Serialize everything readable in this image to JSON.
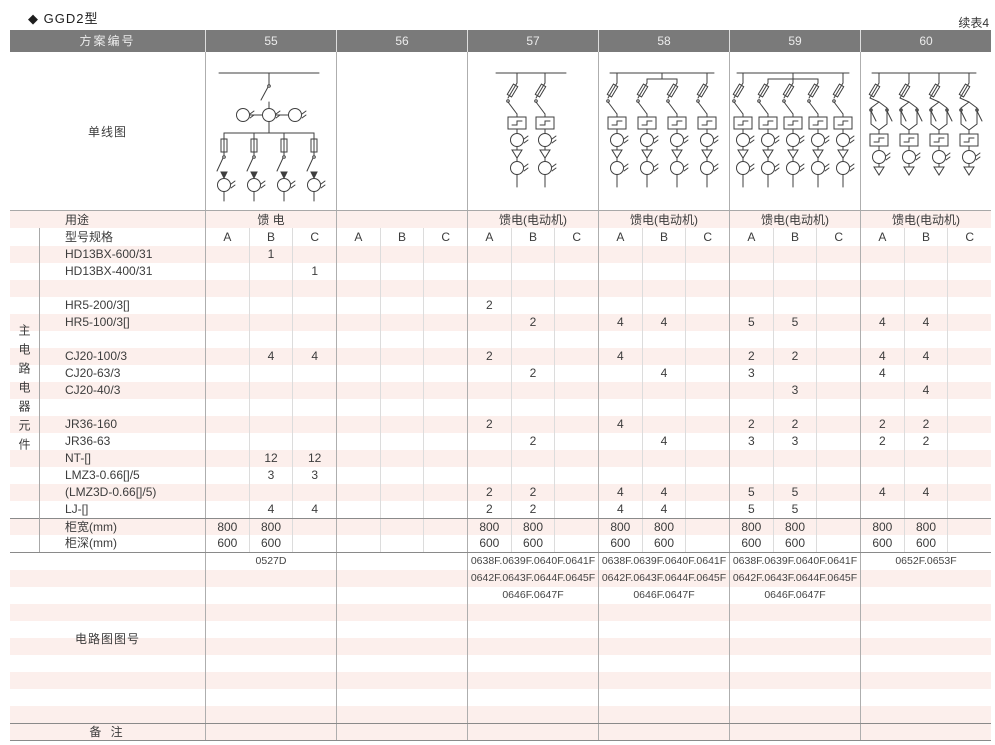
{
  "page": {
    "title": "◆ GGD2型",
    "continued_note": "续表4"
  },
  "colors": {
    "header_bg": "#7a7a7a",
    "stripe_pink": "#fcefec",
    "line_dark": "#8a8a8a",
    "line_mid": "#aeaeae",
    "diagram_stroke": "#3f3f3f"
  },
  "table": {
    "scheme_label": "方案编号",
    "schemes": [
      "55",
      "56",
      "57",
      "58",
      "59",
      "60"
    ],
    "diagram_label": "单线图",
    "diagrams": [
      {
        "scheme": "55",
        "kind": "feeder-fuse-switch",
        "branches": 4
      },
      {
        "scheme": "56",
        "kind": "none",
        "branches": 0
      },
      {
        "scheme": "57",
        "kind": "motor-feeder",
        "branches": 2
      },
      {
        "scheme": "58",
        "kind": "motor-feeder-tee",
        "branches": 4
      },
      {
        "scheme": "59",
        "kind": "motor-feeder-tee",
        "branches": 5
      },
      {
        "scheme": "60",
        "kind": "motor-feeder-reversing",
        "branches": 4
      }
    ],
    "usage_label": "用途",
    "usage_values": [
      "馈 电",
      "",
      "馈电(电动机)",
      "馈电(电动机)",
      "馈电(电动机)",
      "馈电(电动机)"
    ],
    "spec_label": "型号规格",
    "sub_columns": [
      "A",
      "B",
      "C"
    ],
    "side_label": "主电路电器元件",
    "component_rows": [
      {
        "label": "HD13BX-600/31",
        "cells": [
          [
            "",
            "1",
            ""
          ],
          [
            "",
            "",
            ""
          ],
          [
            "",
            "",
            ""
          ],
          [
            "",
            "",
            ""
          ],
          [
            "",
            "",
            ""
          ],
          [
            "",
            "",
            ""
          ]
        ]
      },
      {
        "label": "HD13BX-400/31",
        "cells": [
          [
            "",
            "",
            "1"
          ],
          [
            "",
            "",
            ""
          ],
          [
            "",
            "",
            ""
          ],
          [
            "",
            "",
            ""
          ],
          [
            "",
            "",
            ""
          ],
          [
            "",
            "",
            ""
          ]
        ]
      },
      {
        "label": "",
        "cells": [
          [
            "",
            "",
            ""
          ],
          [
            "",
            "",
            ""
          ],
          [
            "",
            "",
            ""
          ],
          [
            "",
            "",
            ""
          ],
          [
            "",
            "",
            ""
          ],
          [
            "",
            "",
            ""
          ]
        ]
      },
      {
        "label": "HR5-200/3[]",
        "cells": [
          [
            "",
            "",
            ""
          ],
          [
            "",
            "",
            ""
          ],
          [
            "2",
            "",
            ""
          ],
          [
            "",
            "",
            ""
          ],
          [
            "",
            "",
            ""
          ],
          [
            "",
            "",
            ""
          ]
        ]
      },
      {
        "label": "HR5-100/3[]",
        "cells": [
          [
            "",
            "",
            ""
          ],
          [
            "",
            "",
            ""
          ],
          [
            "",
            "2",
            ""
          ],
          [
            "4",
            "4",
            ""
          ],
          [
            "5",
            "5",
            ""
          ],
          [
            "4",
            "4",
            ""
          ]
        ]
      },
      {
        "label": "",
        "cells": [
          [
            "",
            "",
            ""
          ],
          [
            "",
            "",
            ""
          ],
          [
            "",
            "",
            ""
          ],
          [
            "",
            "",
            ""
          ],
          [
            "",
            "",
            ""
          ],
          [
            "",
            "",
            ""
          ]
        ]
      },
      {
        "label": "CJ20-100/3",
        "cells": [
          [
            "",
            "4",
            "4"
          ],
          [
            "",
            "",
            ""
          ],
          [
            "2",
            "",
            ""
          ],
          [
            "4",
            "",
            ""
          ],
          [
            "2",
            "2",
            ""
          ],
          [
            "4",
            "4",
            ""
          ]
        ]
      },
      {
        "label": "CJ20-63/3",
        "cells": [
          [
            "",
            "",
            ""
          ],
          [
            "",
            "",
            ""
          ],
          [
            "",
            "2",
            ""
          ],
          [
            "",
            "4",
            ""
          ],
          [
            "3",
            "",
            ""
          ],
          [
            "4",
            "",
            ""
          ]
        ]
      },
      {
        "label": "CJ20-40/3",
        "cells": [
          [
            "",
            "",
            ""
          ],
          [
            "",
            "",
            ""
          ],
          [
            "",
            "",
            ""
          ],
          [
            "",
            "",
            ""
          ],
          [
            "",
            "3",
            ""
          ],
          [
            "",
            "4",
            ""
          ]
        ]
      },
      {
        "label": "",
        "cells": [
          [
            "",
            "",
            ""
          ],
          [
            "",
            "",
            ""
          ],
          [
            "",
            "",
            ""
          ],
          [
            "",
            "",
            ""
          ],
          [
            "",
            "",
            ""
          ],
          [
            "",
            "",
            ""
          ]
        ]
      },
      {
        "label": "JR36-160",
        "cells": [
          [
            "",
            "",
            ""
          ],
          [
            "",
            "",
            ""
          ],
          [
            "2",
            "",
            ""
          ],
          [
            "4",
            "",
            ""
          ],
          [
            "2",
            "2",
            ""
          ],
          [
            "2",
            "2",
            ""
          ]
        ]
      },
      {
        "label": "JR36-63",
        "cells": [
          [
            "",
            "",
            ""
          ],
          [
            "",
            "",
            ""
          ],
          [
            "",
            "2",
            ""
          ],
          [
            "",
            "4",
            ""
          ],
          [
            "3",
            "3",
            ""
          ],
          [
            "2",
            "2",
            ""
          ]
        ]
      },
      {
        "label": "NT-[]",
        "cells": [
          [
            "",
            "12",
            "12"
          ],
          [
            "",
            "",
            ""
          ],
          [
            "",
            "",
            ""
          ],
          [
            "",
            "",
            ""
          ],
          [
            "",
            "",
            ""
          ],
          [
            "",
            "",
            ""
          ]
        ]
      },
      {
        "label": "LMZ3-0.66[]/5",
        "cells": [
          [
            "",
            "3",
            "3"
          ],
          [
            "",
            "",
            ""
          ],
          [
            "",
            "",
            ""
          ],
          [
            "",
            "",
            ""
          ],
          [
            "",
            "",
            ""
          ],
          [
            "",
            "",
            ""
          ]
        ]
      },
      {
        "label": "(LMZ3D-0.66[]/5)",
        "cells": [
          [
            "",
            "",
            ""
          ],
          [
            "",
            "",
            ""
          ],
          [
            "2",
            "2",
            ""
          ],
          [
            "4",
            "4",
            ""
          ],
          [
            "5",
            "5",
            ""
          ],
          [
            "4",
            "4",
            ""
          ]
        ]
      },
      {
        "label": "LJ-[]",
        "cells": [
          [
            "",
            "4",
            "4"
          ],
          [
            "",
            "",
            ""
          ],
          [
            "2",
            "2",
            ""
          ],
          [
            "4",
            "4",
            ""
          ],
          [
            "5",
            "5",
            ""
          ],
          [
            "",
            "",
            ""
          ]
        ]
      },
      {
        "label": "柜宽(mm)",
        "topline": true,
        "cells": [
          [
            "800",
            "800",
            ""
          ],
          [
            "",
            "",
            ""
          ],
          [
            "800",
            "800",
            ""
          ],
          [
            "800",
            "800",
            ""
          ],
          [
            "800",
            "800",
            ""
          ],
          [
            "800",
            "800",
            ""
          ]
        ]
      },
      {
        "label": "柜深(mm)",
        "cells": [
          [
            "600",
            "600",
            ""
          ],
          [
            "",
            "",
            ""
          ],
          [
            "600",
            "600",
            ""
          ],
          [
            "600",
            "600",
            ""
          ],
          [
            "600",
            "600",
            ""
          ],
          [
            "600",
            "600",
            ""
          ]
        ]
      }
    ],
    "circuit_label": "电路图图号",
    "circuit_rows": [
      [
        "0527D",
        "",
        "0638F.0639F.0640F.0641F",
        "0638F.0639F.0640F.0641F",
        "0638F.0639F.0640F.0641F",
        "0652F.0653F"
      ],
      [
        "",
        "",
        "0642F.0643F.0644F.0645F",
        "0642F.0643F.0644F.0645F",
        "0642F.0643F.0644F.0645F",
        ""
      ],
      [
        "",
        "",
        "0646F.0647F",
        "0646F.0647F",
        "0646F.0647F",
        ""
      ],
      [
        "",
        "",
        "",
        "",
        "",
        ""
      ],
      [
        "",
        "",
        "",
        "",
        "",
        ""
      ],
      [
        "",
        "",
        "",
        "",
        "",
        ""
      ],
      [
        "",
        "",
        "",
        "",
        "",
        ""
      ],
      [
        "",
        "",
        "",
        "",
        "",
        ""
      ],
      [
        "",
        "",
        "",
        "",
        "",
        ""
      ],
      [
        "",
        "",
        "",
        "",
        "",
        ""
      ]
    ],
    "remark_label": "备 注"
  }
}
